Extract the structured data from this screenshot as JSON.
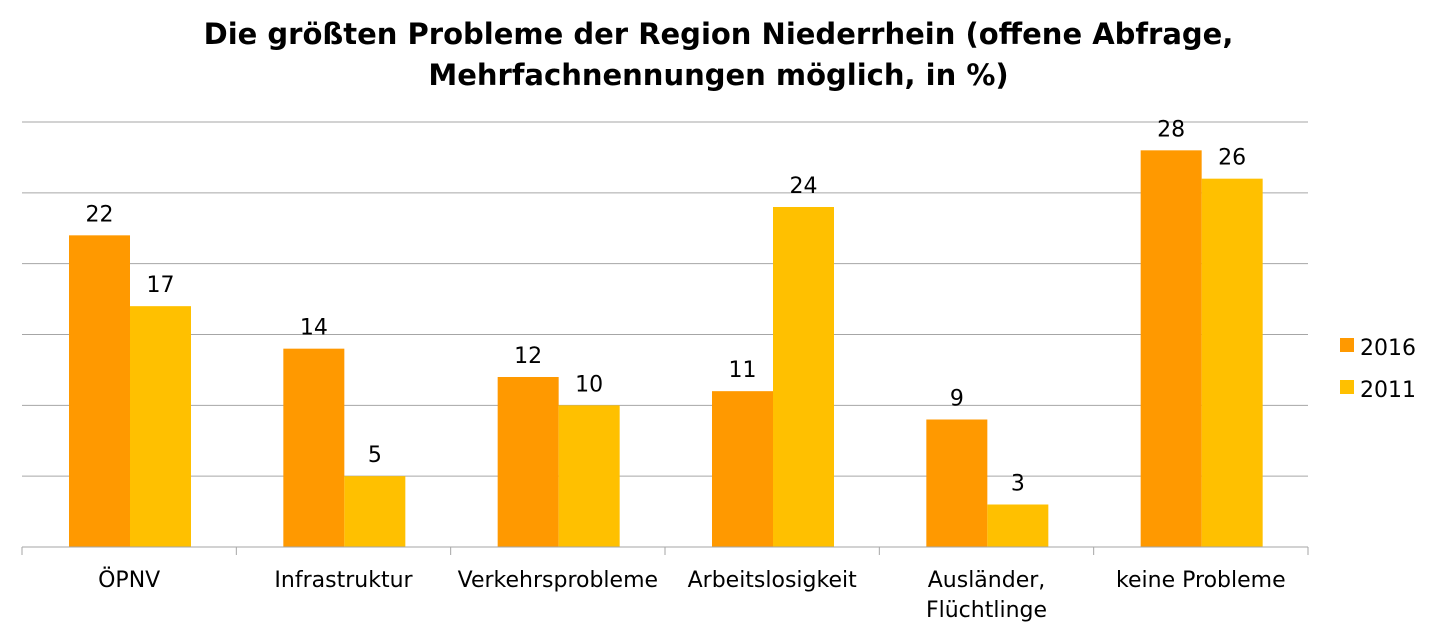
{
  "title_line1": "Die größten Probleme der Region Niederrhein (offene Abfrage,",
  "title_line2": "Mehrfachnennungen möglich, in %)",
  "chart_data": {
    "type": "bar",
    "title": "Die größten Probleme der Region Niederrhein (offene Abfrage, Mehrfachnennungen möglich, in %)",
    "categories": [
      [
        "ÖPNV"
      ],
      [
        "Infrastruktur"
      ],
      [
        "Verkehrsprobleme"
      ],
      [
        "Arbeitslosigkeit"
      ],
      [
        "Ausländer,",
        "Flüchtlinge"
      ],
      [
        "keine Probleme"
      ]
    ],
    "series": [
      {
        "name": "2016",
        "color": "#FF9900",
        "values": [
          22,
          14,
          12,
          11,
          9,
          28
        ]
      },
      {
        "name": "2011",
        "color": "#FFC000",
        "values": [
          17,
          5,
          10,
          24,
          3,
          26
        ]
      }
    ],
    "ylim": [
      0,
      30
    ],
    "grid": true,
    "y_tick_labels_shown": false,
    "legend_position": "right"
  }
}
